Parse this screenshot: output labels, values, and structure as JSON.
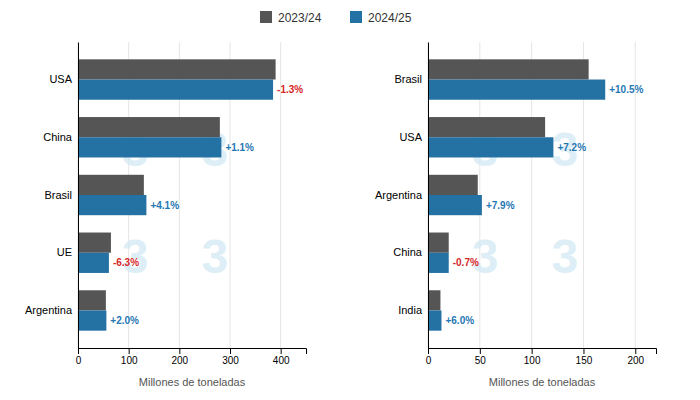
{
  "chart_data": [
    {
      "type": "bar",
      "orientation": "horizontal",
      "grid": true,
      "legend": "top",
      "categories": [
        "Argentina",
        "UE",
        "Brasil",
        "China",
        "USA"
      ],
      "series": [
        {
          "name": "2023/24",
          "color": "#555555",
          "values": [
            55,
            65,
            130,
            280,
            390
          ]
        },
        {
          "name": "2024/25",
          "color": "#2471a3",
          "values": [
            56,
            61,
            135,
            283,
            385
          ]
        }
      ],
      "annotations": [
        {
          "text": "+2.0%",
          "color": "#1f77b4"
        },
        {
          "text": "-6.3%",
          "color": "#d62728"
        },
        {
          "text": "+4.1%",
          "color": "#1f77b4"
        },
        {
          "text": "+1.1%",
          "color": "#1f77b4"
        },
        {
          "text": "-1.3%",
          "color": "#d62728"
        }
      ],
      "watermark": {
        "text": "3",
        "color": "#d0e8f5"
      },
      "xlabel": "Millones de toneladas",
      "xlim": [
        0,
        450
      ],
      "xticks": [
        0,
        100,
        200,
        300,
        400
      ]
    },
    {
      "type": "bar",
      "orientation": "horizontal",
      "grid": true,
      "legend": "top",
      "categories": [
        "India",
        "China",
        "Argentina",
        "USA",
        "Brasil"
      ],
      "series": [
        {
          "name": "2023/24",
          "color": "#555555",
          "values": [
            12,
            20,
            48,
            113,
            155
          ]
        },
        {
          "name": "2024/25",
          "color": "#2471a3",
          "values": [
            13,
            20,
            52,
            121,
            171
          ]
        }
      ],
      "annotations": [
        {
          "text": "+6.0%",
          "color": "#1f77b4"
        },
        {
          "text": "-0.7%",
          "color": "#d62728"
        },
        {
          "text": "+7.9%",
          "color": "#1f77b4"
        },
        {
          "text": "+7.2%",
          "color": "#1f77b4"
        },
        {
          "text": "+10.5%",
          "color": "#1f77b4"
        }
      ],
      "watermark": {
        "text": "3",
        "color": "#d0e8f5"
      },
      "xlabel": "Millones de toneladas",
      "xlim": [
        0,
        220
      ],
      "xticks": [
        0,
        50,
        100,
        150,
        200
      ]
    }
  ]
}
